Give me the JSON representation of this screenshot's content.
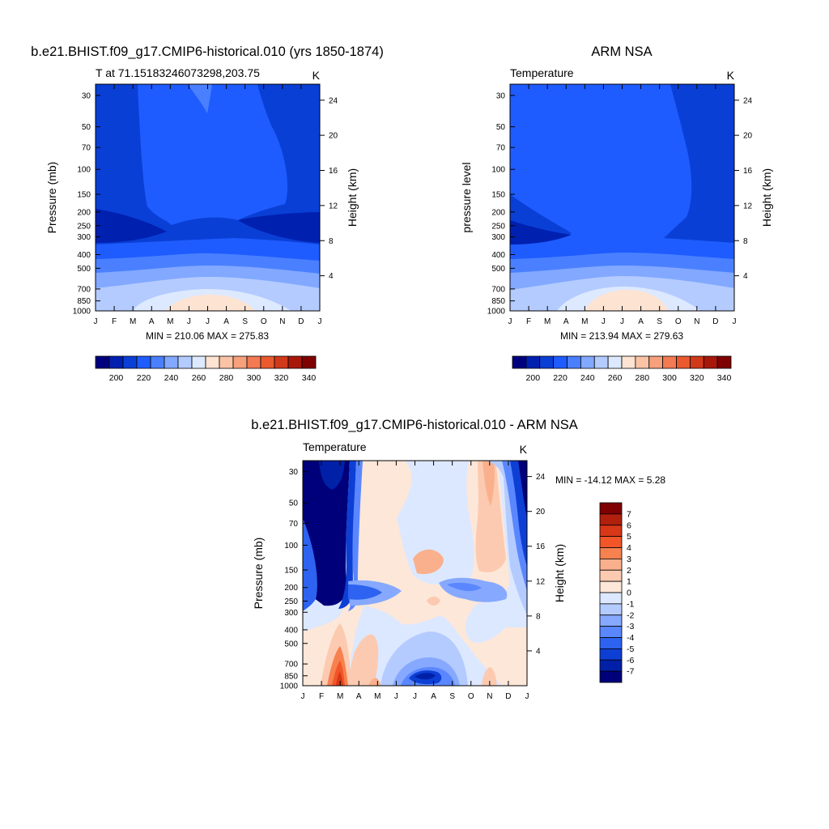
{
  "panels": [
    {
      "id": "model",
      "title": "b.e21.BHIST.f09_g17.CMIP6-historical.010 (yrs 1850-1874)",
      "left_label": "T at 71.15183246073298,203.75",
      "units": "K",
      "y_left_label": "Pressure (mb)",
      "y_right_label": "Height (km)",
      "minmax": "MIN = 210.06 MAX = 275.83"
    },
    {
      "id": "obs",
      "title": "ARM NSA",
      "left_label": "Temperature",
      "units": "K",
      "y_left_label": "pressure level",
      "y_right_label": "Height (km)",
      "minmax": "MIN = 213.94 MAX = 279.63"
    },
    {
      "id": "diff",
      "title": "b.e21.BHIST.f09_g17.CMIP6-historical.010 - ARM NSA",
      "left_label": "Temperature",
      "units": "K",
      "y_left_label": "Pressure (mb)",
      "y_right_label": "Height (km)",
      "minmax": "MIN = -14.12 MAX =   5.28"
    }
  ],
  "colorbars": {
    "absolute": {
      "labels": [
        "200",
        "220",
        "240",
        "260",
        "280",
        "300",
        "320",
        "340"
      ],
      "colors": [
        "#00007f",
        "#0020b0",
        "#0a3fd6",
        "#1e5cff",
        "#4a80ff",
        "#82a8ff",
        "#b4cbff",
        "#dde9ff",
        "#fde3d2",
        "#fbc3a6",
        "#f7a07c",
        "#f37a52",
        "#ea5a2e",
        "#d03a1a",
        "#a8180a",
        "#7f0000"
      ]
    },
    "difference": {
      "labels": [
        "7",
        "6",
        "5",
        "4",
        "3",
        "2",
        "1",
        "0",
        "-1",
        "-2",
        "-3",
        "-4",
        "-5",
        "-6",
        "-7"
      ],
      "colors": [
        "#7f0000",
        "#b0200d",
        "#d83818",
        "#f25628",
        "#f7814f",
        "#fab08c",
        "#fccab0",
        "#fde7d8",
        "#dce8ff",
        "#b4cbff",
        "#86a9ff",
        "#5a87ff",
        "#2d63f0",
        "#0d3fd4",
        "#0020a8",
        "#00007a"
      ]
    }
  },
  "axes": {
    "month_ticks": [
      "J",
      "F",
      "M",
      "A",
      "M",
      "J",
      "J",
      "A",
      "S",
      "O",
      "N",
      "D",
      "J"
    ],
    "pressure_ticks": [
      "30",
      "50",
      "70",
      "100",
      "150",
      "200",
      "250",
      "300",
      "400",
      "500",
      "700",
      "850",
      "1000"
    ],
    "height_ticks": [
      "24",
      "20",
      "16",
      "12",
      "8",
      "4"
    ]
  },
  "chart_data": [
    {
      "type": "heatmap",
      "title": "b.e21.BHIST.f09_g17.CMIP6-historical.010 (yrs 1850-1874)",
      "variable": "T at 71.15183246073298,203.75",
      "units": "K",
      "xlabel": "",
      "ylabel": "Pressure (mb)",
      "ylabel_right": "Height (km)",
      "x": [
        "J",
        "F",
        "M",
        "A",
        "M",
        "J",
        "J",
        "A",
        "S",
        "O",
        "N",
        "D",
        "J"
      ],
      "y_pressure_mb": [
        30,
        50,
        70,
        100,
        150,
        200,
        250,
        300,
        400,
        500,
        700,
        850,
        1000
      ],
      "y_range_mb": [
        25,
        1000
      ],
      "y_scale": "log",
      "min": 210.06,
      "max": 275.83,
      "levels": [
        190,
        200,
        210,
        220,
        230,
        240,
        250,
        260,
        270,
        280,
        290,
        300,
        310,
        320,
        330,
        340,
        350
      ]
    },
    {
      "type": "heatmap",
      "title": "ARM NSA",
      "variable": "Temperature",
      "units": "K",
      "ylabel": "pressure level",
      "ylabel_right": "Height (km)",
      "x": [
        "J",
        "F",
        "M",
        "A",
        "M",
        "J",
        "J",
        "A",
        "S",
        "O",
        "N",
        "D",
        "J"
      ],
      "y_pressure_mb": [
        30,
        50,
        70,
        100,
        150,
        200,
        250,
        300,
        400,
        500,
        700,
        850,
        1000
      ],
      "y_range_mb": [
        25,
        1000
      ],
      "y_scale": "log",
      "min": 213.94,
      "max": 279.63,
      "levels": [
        190,
        200,
        210,
        220,
        230,
        240,
        250,
        260,
        270,
        280,
        290,
        300,
        310,
        320,
        330,
        340,
        350
      ]
    },
    {
      "type": "heatmap",
      "title": "b.e21.BHIST.f09_g17.CMIP6-historical.010 - ARM NSA",
      "variable": "Temperature",
      "units": "K",
      "ylabel": "Pressure (mb)",
      "ylabel_right": "Height (km)",
      "x": [
        "J",
        "F",
        "M",
        "A",
        "M",
        "J",
        "J",
        "A",
        "S",
        "O",
        "N",
        "D",
        "J"
      ],
      "y_pressure_mb": [
        30,
        50,
        70,
        100,
        150,
        200,
        250,
        300,
        400,
        500,
        700,
        850,
        1000
      ],
      "y_range_mb": [
        25,
        1000
      ],
      "y_scale": "log",
      "min": -14.12,
      "max": 5.28,
      "levels": [
        -8,
        -7,
        -6,
        -5,
        -4,
        -3,
        -2,
        -1,
        0,
        1,
        2,
        3,
        4,
        5,
        6,
        7,
        8
      ]
    }
  ]
}
